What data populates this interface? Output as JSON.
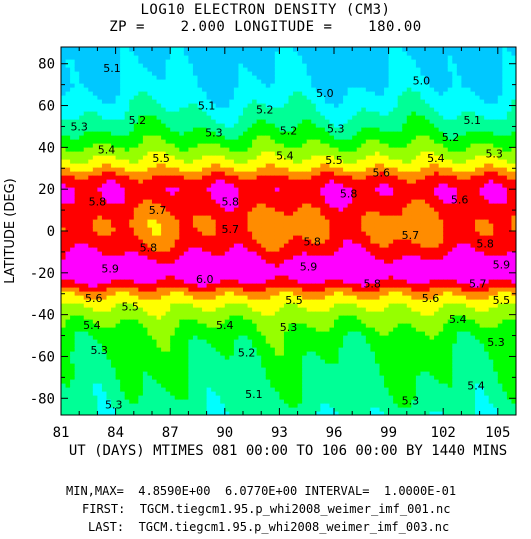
{
  "title_line1": "LOG10 ELECTRON DENSITY (CM3)",
  "title_line2": "ZP =    2.000 LONGITUDE =    180.00",
  "footer": {
    "minmax": "MIN,MAX=  4.8590E+00  6.0770E+00 INTERVAL=  1.0000E-01",
    "first": "FIRST:  TGCM.tiegcm1.95.p_whi2008_weimer_imf_001.nc",
    "last": "LAST:  TGCM.tiegcm1.95.p_whi2008_weimer_imf_003.nc"
  },
  "chart_data": {
    "type": "heatmap",
    "title": "LOG10 ELECTRON DENSITY (CM3)",
    "subtitle": "ZP =    2.000 LONGITUDE =    180.00",
    "xlabel": "UT (DAYS) MTIMES 081 00:00 TO 106 00:00 BY 1440 MINS",
    "ylabel": "LATITUDE (DEG)",
    "xlim": [
      81,
      106
    ],
    "ylim": [
      -88,
      88
    ],
    "xticks": [
      81,
      84,
      87,
      90,
      93,
      96,
      99,
      102,
      105
    ],
    "yticks": [
      -80,
      -60,
      -40,
      -20,
      0,
      20,
      40,
      60,
      80
    ],
    "min": 4.859,
    "max": 6.077,
    "interval": 0.1,
    "levels": [
      5.0,
      5.1,
      5.2,
      5.3,
      5.4,
      5.5,
      5.6,
      5.7,
      5.8,
      5.9,
      6.0
    ],
    "colors": [
      "#00c8ff",
      "#00ffff",
      "#00ff96",
      "#00ff00",
      "#96ff00",
      "#ffff00",
      "#ff8c00",
      "#ff0000",
      "#ff00ff"
    ],
    "latitude_profile": {
      "lat": [
        -88,
        -80,
        -70,
        -60,
        -50,
        -40,
        -35,
        -30,
        -25,
        -20,
        -15,
        -10,
        -5,
        0,
        5,
        10,
        15,
        20,
        25,
        30,
        35,
        40,
        50,
        60,
        70,
        80,
        88
      ],
      "value": [
        5.22,
        5.26,
        5.29,
        5.31,
        5.35,
        5.45,
        5.52,
        5.62,
        5.78,
        5.9,
        5.86,
        5.78,
        5.72,
        5.68,
        5.68,
        5.72,
        5.77,
        5.79,
        5.74,
        5.6,
        5.5,
        5.42,
        5.28,
        5.18,
        5.1,
        5.08,
        5.06
      ]
    },
    "contour_labels": [
      {
        "text": "5.1",
        "x": 83.8,
        "y": 78
      },
      {
        "text": "5.0",
        "x": 95.5,
        "y": 66
      },
      {
        "text": "5.0",
        "x": 100.8,
        "y": 72
      },
      {
        "text": "5.1",
        "x": 89.0,
        "y": 60
      },
      {
        "text": "5.2",
        "x": 92.2,
        "y": 58
      },
      {
        "text": "5.1",
        "x": 103.6,
        "y": 53
      },
      {
        "text": "5.3",
        "x": 82.0,
        "y": 50
      },
      {
        "text": "5.2",
        "x": 85.2,
        "y": 53
      },
      {
        "text": "5.3",
        "x": 89.4,
        "y": 47
      },
      {
        "text": "5.2",
        "x": 93.5,
        "y": 48
      },
      {
        "text": "5.3",
        "x": 96.1,
        "y": 49
      },
      {
        "text": "5.2",
        "x": 102.4,
        "y": 45
      },
      {
        "text": "5.3",
        "x": 104.8,
        "y": 37
      },
      {
        "text": "5.4",
        "x": 83.5,
        "y": 39
      },
      {
        "text": "5.5",
        "x": 86.5,
        "y": 35
      },
      {
        "text": "5.4",
        "x": 93.3,
        "y": 36
      },
      {
        "text": "5.5",
        "x": 96.0,
        "y": 34
      },
      {
        "text": "5.4",
        "x": 101.6,
        "y": 35
      },
      {
        "text": "5.6",
        "x": 98.6,
        "y": 28
      },
      {
        "text": "5.6",
        "x": 102.9,
        "y": 15
      },
      {
        "text": "5.8",
        "x": 83.0,
        "y": 14
      },
      {
        "text": "5.7",
        "x": 86.3,
        "y": 10
      },
      {
        "text": "5.8",
        "x": 90.3,
        "y": 14
      },
      {
        "text": "5.8",
        "x": 96.8,
        "y": 18
      },
      {
        "text": "5.7",
        "x": 90.3,
        "y": 1
      },
      {
        "text": "5.7",
        "x": 100.2,
        "y": -2
      },
      {
        "text": "5.8",
        "x": 85.8,
        "y": -8
      },
      {
        "text": "5.8",
        "x": 94.8,
        "y": -5
      },
      {
        "text": "5.8",
        "x": 104.3,
        "y": -6
      },
      {
        "text": "5.9",
        "x": 83.7,
        "y": -18
      },
      {
        "text": "5.9",
        "x": 94.6,
        "y": -17
      },
      {
        "text": "5.9",
        "x": 105.2,
        "y": -16
      },
      {
        "text": "6.0",
        "x": 88.9,
        "y": -23
      },
      {
        "text": "5.8",
        "x": 98.1,
        "y": -25
      },
      {
        "text": "5.7",
        "x": 103.9,
        "y": -25
      },
      {
        "text": "5.6",
        "x": 82.8,
        "y": -32
      },
      {
        "text": "5.5",
        "x": 84.8,
        "y": -36
      },
      {
        "text": "5.5",
        "x": 93.8,
        "y": -33
      },
      {
        "text": "5.6",
        "x": 101.3,
        "y": -32
      },
      {
        "text": "5.5",
        "x": 105.2,
        "y": -33
      },
      {
        "text": "5.4",
        "x": 82.7,
        "y": -45
      },
      {
        "text": "5.4",
        "x": 90.0,
        "y": -45
      },
      {
        "text": "5.3",
        "x": 93.5,
        "y": -46
      },
      {
        "text": "5.4",
        "x": 102.8,
        "y": -42
      },
      {
        "text": "5.3",
        "x": 83.1,
        "y": -57
      },
      {
        "text": "5.2",
        "x": 91.2,
        "y": -58
      },
      {
        "text": "5.3",
        "x": 104.9,
        "y": -53
      },
      {
        "text": "5.4",
        "x": 103.8,
        "y": -74
      },
      {
        "text": "5.1",
        "x": 91.6,
        "y": -78
      },
      {
        "text": "5.3",
        "x": 83.9,
        "y": -83
      },
      {
        "text": "5.3",
        "x": 100.2,
        "y": -81
      }
    ]
  }
}
